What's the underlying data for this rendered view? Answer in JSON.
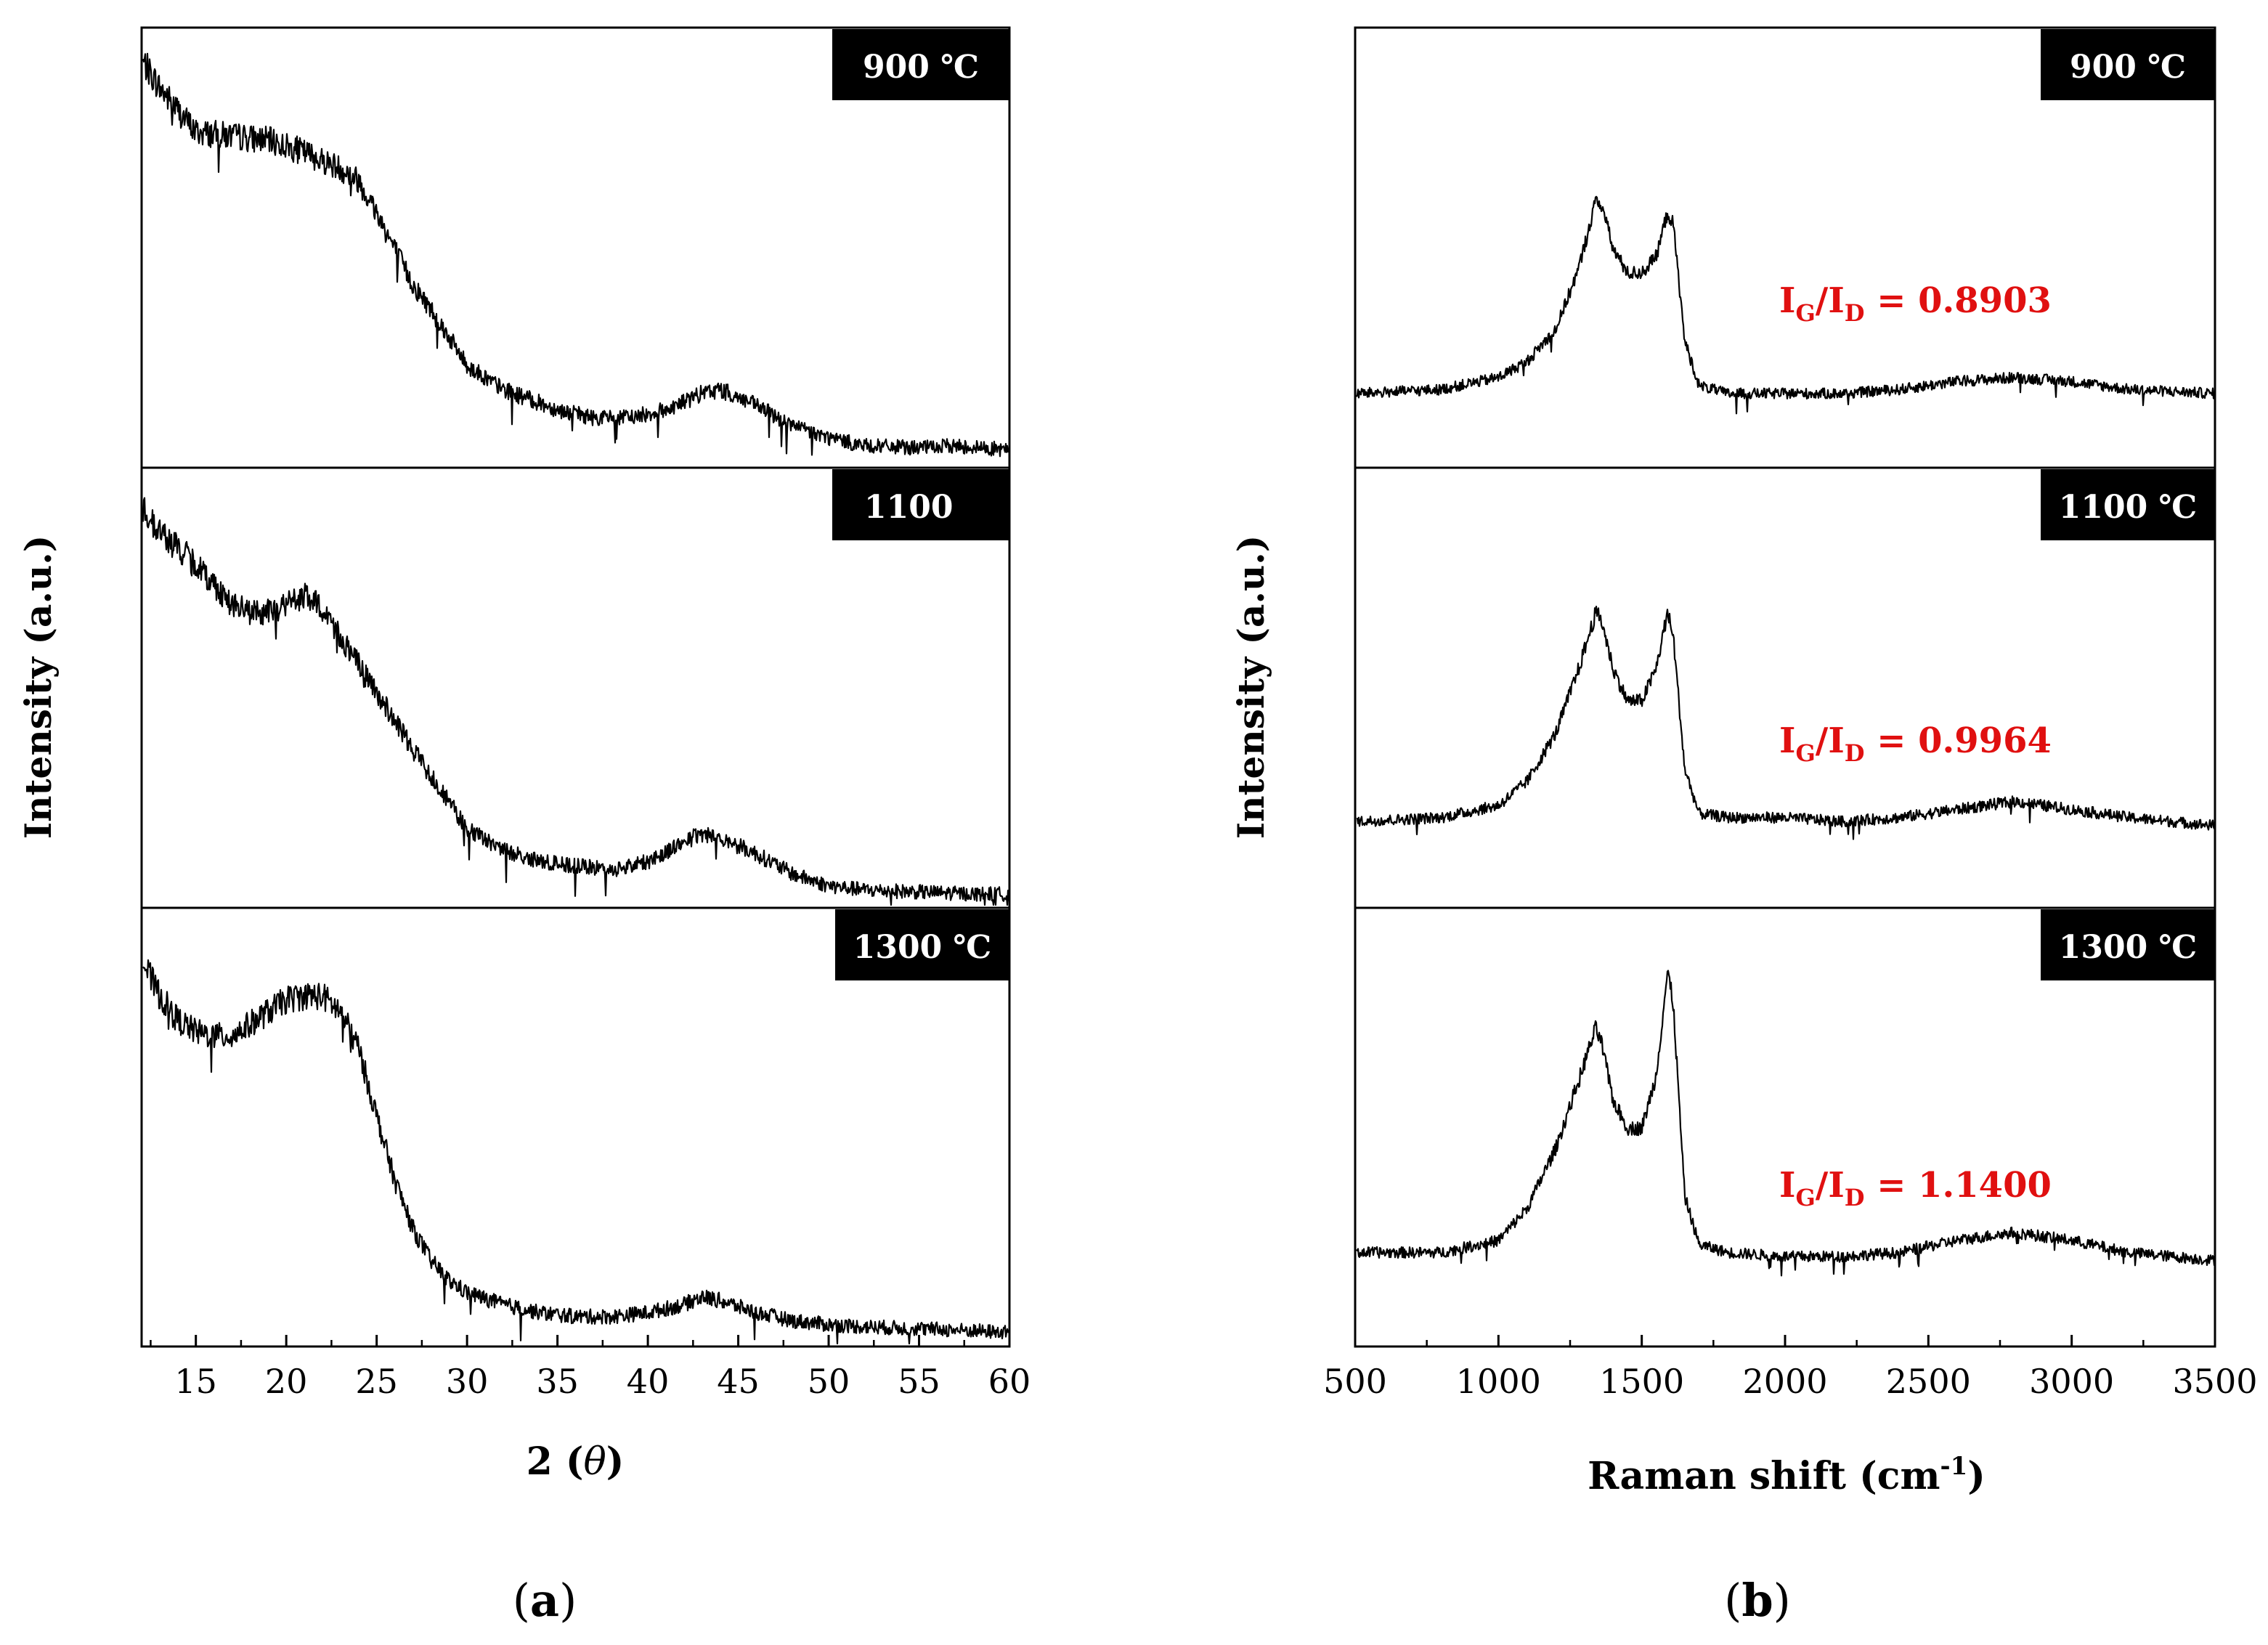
{
  "panels": [
    {
      "id": "a",
      "caption": "a",
      "ylabel": "Intensity (a.u.)",
      "xlabel_prefix": "2 (",
      "xlabel_var": "θ",
      "xlabel_suffix": ")",
      "xlim": [
        12,
        60
      ],
      "xticks": [
        "15",
        "20",
        "25",
        "30",
        "35",
        "40",
        "45",
        "50",
        "55",
        "60"
      ]
    },
    {
      "id": "b",
      "caption": "b",
      "ylabel": "Intensity (a.u.)",
      "xlabel_main": "Raman shift (cm",
      "xlabel_sup": "-1",
      "xlabel_close": ")",
      "xlim": [
        500,
        3500
      ],
      "xticks": [
        "500",
        "1000",
        "1500",
        "2000",
        "2500",
        "3000",
        "3500"
      ]
    }
  ],
  "colors": {
    "trace": "#000000",
    "ratio": "#e01010",
    "tag_bg": "#000000",
    "tag_fg": "#ffffff"
  },
  "chart_data": [
    {
      "type": "line",
      "title": "(a)",
      "xlabel": "2 (θ)",
      "ylabel": "Intensity (a.u.)",
      "xlim": [
        12,
        60
      ],
      "series": [
        {
          "name": "900 ℃",
          "label": "900 ℃",
          "x": [
            12,
            13,
            15,
            17,
            19,
            21,
            23,
            24,
            25,
            26,
            27,
            28,
            29,
            30,
            32,
            35,
            37,
            39,
            41,
            43,
            44,
            46,
            48,
            50,
            52,
            55,
            57,
            60
          ],
          "y": [
            1.0,
            0.93,
            0.82,
            0.81,
            0.8,
            0.77,
            0.73,
            0.7,
            0.62,
            0.53,
            0.44,
            0.38,
            0.31,
            0.24,
            0.18,
            0.13,
            0.11,
            0.11,
            0.13,
            0.17,
            0.18,
            0.14,
            0.09,
            0.06,
            0.04,
            0.035,
            0.04,
            0.03
          ]
        },
        {
          "name": "1100",
          "label": "1100",
          "x": [
            12,
            13,
            15,
            17,
            18,
            19,
            20,
            21,
            22,
            23,
            25,
            27,
            29,
            30,
            32,
            34,
            36,
            38,
            40,
            42,
            43,
            44,
            46,
            48,
            50,
            52,
            55,
            58,
            60
          ],
          "y": [
            0.98,
            0.92,
            0.84,
            0.74,
            0.72,
            0.72,
            0.74,
            0.76,
            0.73,
            0.66,
            0.52,
            0.38,
            0.25,
            0.18,
            0.13,
            0.1,
            0.09,
            0.08,
            0.1,
            0.15,
            0.17,
            0.16,
            0.12,
            0.07,
            0.04,
            0.03,
            0.025,
            0.02,
            0.02
          ]
        },
        {
          "name": "1300 ℃",
          "label": "1300 ℃",
          "x": [
            12,
            13,
            14,
            15,
            16,
            17,
            18,
            19,
            20,
            21,
            22,
            23,
            24,
            25,
            26,
            27,
            28,
            29,
            30,
            32,
            34,
            36,
            38,
            40,
            42,
            43,
            44,
            46,
            48,
            50,
            52,
            55,
            58,
            60
          ],
          "y": [
            0.95,
            0.86,
            0.8,
            0.77,
            0.76,
            0.76,
            0.79,
            0.82,
            0.85,
            0.86,
            0.86,
            0.82,
            0.73,
            0.56,
            0.4,
            0.28,
            0.2,
            0.15,
            0.12,
            0.09,
            0.07,
            0.06,
            0.06,
            0.07,
            0.09,
            0.11,
            0.1,
            0.07,
            0.05,
            0.04,
            0.035,
            0.03,
            0.025,
            0.02
          ]
        }
      ]
    },
    {
      "type": "line",
      "title": "(b)",
      "xlabel": "Raman shift (cm-1)",
      "ylabel": "Intensity (a.u.)",
      "xlim": [
        500,
        3500
      ],
      "series": [
        {
          "name": "900 ℃",
          "label": "900 ℃",
          "ratio_text": "I",
          "ratio_sub1": "G",
          "ratio_slash": "/I",
          "ratio_sub2": "D",
          "ratio_value": " = 0.8903",
          "x": [
            500,
            800,
            1000,
            1100,
            1200,
            1280,
            1340,
            1360,
            1400,
            1450,
            1500,
            1550,
            1590,
            1610,
            1650,
            1700,
            1800,
            2000,
            2200,
            2400,
            2600,
            2800,
            3000,
            3200,
            3500
          ],
          "y": [
            0.17,
            0.18,
            0.21,
            0.25,
            0.33,
            0.48,
            0.65,
            0.64,
            0.53,
            0.47,
            0.47,
            0.51,
            0.62,
            0.59,
            0.3,
            0.19,
            0.17,
            0.17,
            0.17,
            0.18,
            0.2,
            0.21,
            0.2,
            0.18,
            0.17
          ]
        },
        {
          "name": "1100 ℃",
          "label": "1100 ℃",
          "ratio_text": "I",
          "ratio_sub1": "G",
          "ratio_slash": "/I",
          "ratio_sub2": "D",
          "ratio_value": " = 0.9964",
          "x": [
            500,
            800,
            1000,
            1100,
            1200,
            1280,
            1340,
            1360,
            1400,
            1450,
            1500,
            1550,
            1590,
            1610,
            1650,
            1700,
            1800,
            2000,
            2200,
            2400,
            2600,
            2800,
            3000,
            3200,
            3500
          ],
          "y": [
            0.2,
            0.21,
            0.24,
            0.3,
            0.42,
            0.58,
            0.72,
            0.7,
            0.58,
            0.5,
            0.5,
            0.58,
            0.72,
            0.66,
            0.33,
            0.22,
            0.21,
            0.21,
            0.2,
            0.21,
            0.23,
            0.25,
            0.23,
            0.21,
            0.19
          ]
        },
        {
          "name": "1300 ℃",
          "label": "1300 ℃",
          "ratio_text": "I",
          "ratio_sub1": "G",
          "ratio_slash": "/I",
          "ratio_sub2": "D",
          "ratio_value": " = 1.1400",
          "x": [
            500,
            800,
            1000,
            1100,
            1200,
            1280,
            1340,
            1360,
            1400,
            1450,
            1500,
            1550,
            1590,
            1610,
            1650,
            1700,
            1800,
            2000,
            2200,
            2400,
            2600,
            2800,
            3000,
            3200,
            3500
          ],
          "y": [
            0.22,
            0.22,
            0.25,
            0.33,
            0.48,
            0.65,
            0.78,
            0.74,
            0.6,
            0.53,
            0.53,
            0.66,
            0.92,
            0.84,
            0.36,
            0.24,
            0.22,
            0.21,
            0.21,
            0.22,
            0.25,
            0.27,
            0.25,
            0.22,
            0.2
          ]
        }
      ]
    }
  ]
}
